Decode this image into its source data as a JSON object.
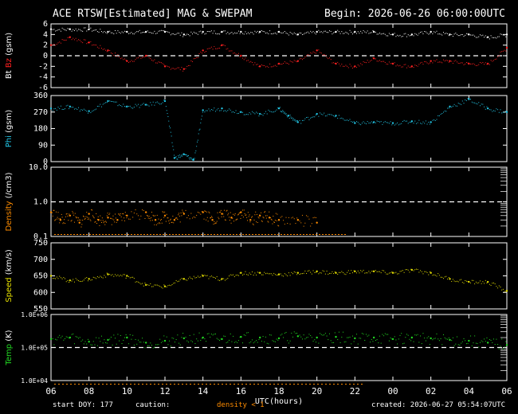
{
  "header": {
    "title": "ACE RTSW[Estimated] MAG & SWEPAM",
    "begin": "Begin: 2026-06-26 06:00:00UTC"
  },
  "colors": {
    "bt": "#ffffff",
    "bz": "#ff2020",
    "phi": "#22c6e6",
    "density": "#ff8c00",
    "speed": "#e6e000",
    "temp": "#22dd22",
    "axis": "#ffffff"
  },
  "footer": {
    "start_doy": "start DOY: 177",
    "caution": "caution:",
    "density_note": "density < 1",
    "created": "created: 2026-06-27 05:54:07UTC"
  },
  "chart_data": [
    {
      "type": "scatter",
      "panel": "mag",
      "ylabel_parts": [
        "Bt",
        "Bz",
        "(gsm)"
      ],
      "yticks": [
        "6",
        "4",
        "2",
        "0",
        "-2",
        "-4",
        "-6"
      ],
      "ylim": [
        -6,
        6
      ],
      "series": [
        {
          "name": "Bt",
          "color": "#ffffff",
          "x": [
            0,
            1,
            2,
            3,
            4,
            5,
            6,
            7,
            8,
            9,
            10,
            11,
            12,
            13,
            14,
            15,
            16,
            17,
            18,
            19,
            20,
            21,
            22,
            23,
            24
          ],
          "values": [
            5,
            5,
            5,
            4.5,
            4.5,
            4.5,
            4.5,
            4,
            4.5,
            4.5,
            4.5,
            4.5,
            4.5,
            4,
            4.5,
            4.5,
            4.5,
            4.5,
            4,
            4,
            4.5,
            4,
            4,
            3.5,
            4
          ]
        },
        {
          "name": "Bz",
          "color": "#ff2020",
          "x": [
            0,
            1,
            2,
            3,
            4,
            5,
            6,
            7,
            8,
            9,
            10,
            11,
            12,
            13,
            14,
            15,
            16,
            17,
            18,
            19,
            20,
            21,
            22,
            23,
            24
          ],
          "values": [
            2,
            3.5,
            2.5,
            1,
            -1,
            0,
            -2,
            -2.5,
            1,
            2,
            0,
            -2,
            -1.5,
            -1,
            1,
            -1.5,
            -2,
            -0.5,
            -1.5,
            -2,
            -1,
            -1,
            -1.5,
            -1.5,
            1.5
          ]
        }
      ],
      "reference_line": 0
    },
    {
      "type": "scatter",
      "panel": "phi",
      "ylabel_parts": [
        "Phi",
        "(gsm)"
      ],
      "yticks": [
        "360",
        "270",
        "180",
        "90",
        "0"
      ],
      "ylim": [
        0,
        360
      ],
      "series": [
        {
          "name": "Phi",
          "color": "#22c6e6",
          "x": [
            0,
            1,
            2,
            3,
            4,
            5,
            6,
            6.5,
            7,
            7.5,
            8,
            9,
            10,
            11,
            12,
            12.5,
            13,
            14,
            15,
            16,
            17,
            18,
            19,
            20,
            21,
            22,
            23,
            24
          ],
          "values": [
            290,
            300,
            275,
            330,
            300,
            310,
            330,
            20,
            40,
            10,
            280,
            290,
            270,
            260,
            290,
            250,
            215,
            260,
            250,
            210,
            215,
            210,
            220,
            215,
            300,
            340,
            290,
            270
          ]
        }
      ]
    },
    {
      "type": "scatter",
      "panel": "density",
      "ylabel_parts": [
        "Density",
        "(/cm3)"
      ],
      "yticks": [
        "10.0",
        "1.0",
        "0.1"
      ],
      "ylim": [
        0.1,
        10
      ],
      "log": true,
      "reference_line": 1.0,
      "series": [
        {
          "name": "Density",
          "color": "#ff8c00",
          "x": [
            0,
            0.5,
            1,
            1.5,
            2,
            2.5,
            3,
            3.5,
            4,
            5,
            5.5,
            6,
            6.5,
            7,
            8,
            8.5,
            9,
            9.5,
            10,
            10.5,
            11,
            11.5,
            12,
            13,
            14
          ],
          "values": [
            0.5,
            0.3,
            0.4,
            0.25,
            0.45,
            0.3,
            0.35,
            0.3,
            0.4,
            0.5,
            0.3,
            0.4,
            0.3,
            0.45,
            0.5,
            0.3,
            0.45,
            0.35,
            0.5,
            0.3,
            0.4,
            0.35,
            0.3,
            0.3,
            0.25
          ]
        }
      ]
    },
    {
      "type": "scatter",
      "panel": "speed",
      "ylabel_parts": [
        "Speed",
        "(km/s)"
      ],
      "yticks": [
        "750",
        "700",
        "650",
        "600",
        "550"
      ],
      "ylim": [
        540,
        760
      ],
      "series": [
        {
          "name": "Speed",
          "color": "#e6e000",
          "x": [
            0,
            1,
            2,
            3,
            4,
            5,
            6,
            7,
            8,
            9,
            10,
            11,
            12,
            13,
            14,
            15,
            16,
            17,
            18,
            19,
            20,
            21,
            22,
            23,
            24
          ],
          "values": [
            650,
            635,
            640,
            655,
            650,
            620,
            615,
            640,
            650,
            640,
            660,
            660,
            655,
            660,
            665,
            660,
            665,
            665,
            660,
            670,
            660,
            640,
            630,
            630,
            600
          ]
        }
      ]
    },
    {
      "type": "scatter",
      "panel": "temp",
      "ylabel_parts": [
        "Temp",
        "(K)"
      ],
      "yticks": [
        "1.0E+06",
        "1.0E+05",
        "1.0E+04"
      ],
      "ylim": [
        10000,
        1000000
      ],
      "log": true,
      "reference_line": 100000,
      "series": [
        {
          "name": "Temp",
          "color": "#22dd22",
          "x": [
            0,
            1,
            2,
            3,
            4,
            5,
            6,
            7,
            8,
            9,
            10,
            11,
            12,
            13,
            14,
            15,
            16,
            17,
            18,
            19,
            20,
            21,
            22,
            23,
            24
          ],
          "values": [
            180000,
            200000,
            150000,
            170000,
            200000,
            140000,
            160000,
            190000,
            200000,
            180000,
            210000,
            200000,
            190000,
            220000,
            200000,
            210000,
            190000,
            200000,
            180000,
            200000,
            190000,
            170000,
            160000,
            140000,
            120000
          ]
        }
      ]
    }
  ],
  "xaxis": {
    "ticks": [
      "06",
      "08",
      "10",
      "12",
      "14",
      "16",
      "18",
      "20",
      "22",
      "00",
      "02",
      "04",
      "06"
    ],
    "label": "UTC(hours)",
    "range": [
      0,
      24
    ]
  }
}
